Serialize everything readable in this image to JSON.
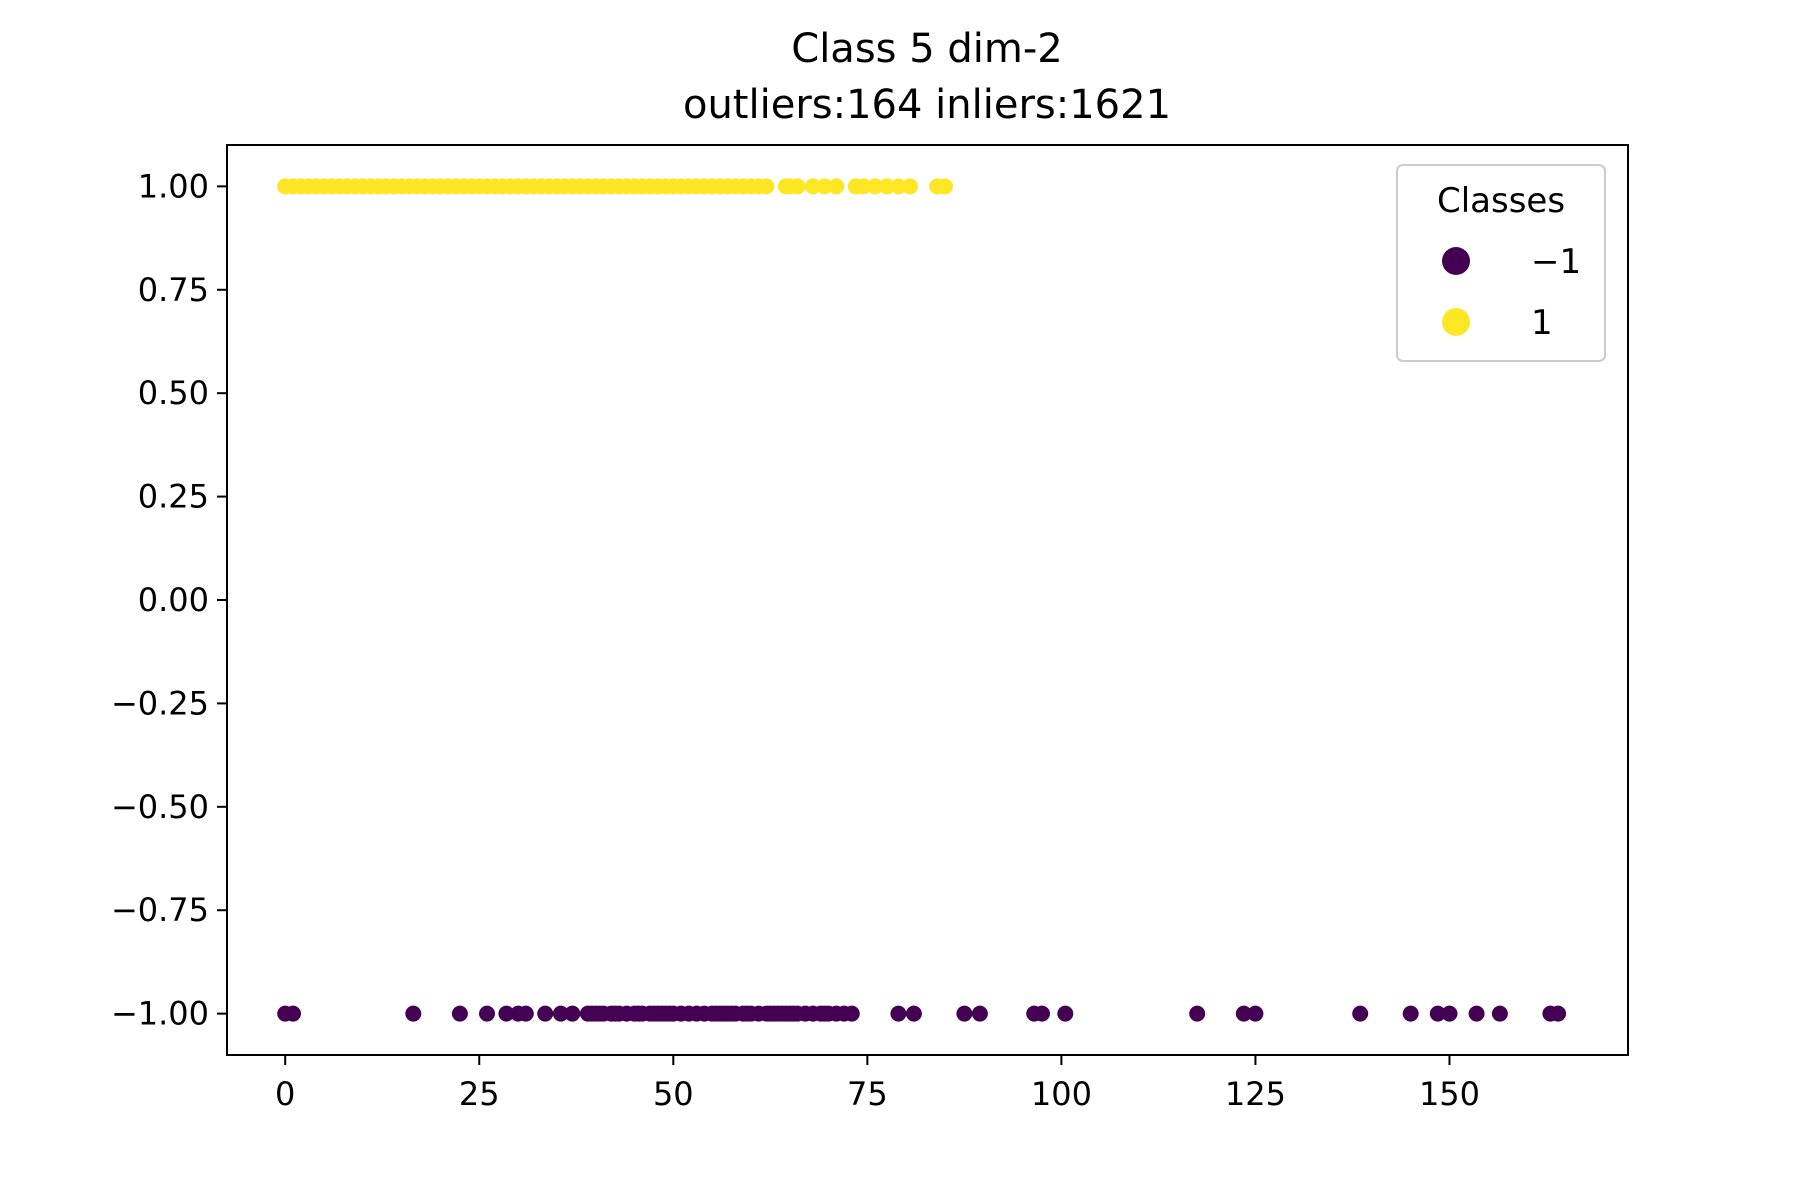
{
  "chart_data": {
    "type": "scatter",
    "title": "Class 5 dim-2",
    "subtitle": "outliers:164  inliers:1621",
    "xlabel": "",
    "ylabel": "",
    "xlim": [
      -7.5,
      173
    ],
    "ylim": [
      -1.1,
      1.1
    ],
    "x_ticks": [
      0,
      25,
      50,
      75,
      100,
      125,
      150
    ],
    "x_tick_labels": [
      "0",
      "25",
      "50",
      "75",
      "100",
      "125",
      "150"
    ],
    "y_ticks": [
      1.0,
      0.75,
      0.5,
      0.25,
      0.0,
      -0.25,
      -0.5,
      -0.75,
      -1.0
    ],
    "y_tick_labels": [
      "1.00",
      "0.75",
      "0.50",
      "0.25",
      "0.00",
      "−0.25",
      "−0.50",
      "−0.75",
      "−1.00"
    ],
    "grid": false,
    "legend": {
      "title": "Classes",
      "placement": "top-right",
      "entries": [
        {
          "label": "−1",
          "color": "#440154"
        },
        {
          "label": "1",
          "color": "#fde725"
        }
      ]
    },
    "series": [
      {
        "name": "−1",
        "color": "#440154",
        "y": -1,
        "x": [
          0,
          1,
          16.5,
          22.5,
          26,
          28.5,
          30,
          31,
          33.5,
          35.5,
          37,
          39,
          39.5,
          40,
          40.5,
          41,
          42,
          42.5,
          43,
          44,
          45,
          45.5,
          46,
          47,
          47.5,
          48,
          48.5,
          49,
          49.5,
          50,
          51,
          52,
          53,
          54,
          55,
          55.5,
          56,
          56.5,
          57,
          57.5,
          58,
          59,
          59.5,
          60,
          61,
          62,
          62.5,
          63,
          63.5,
          64,
          64.5,
          65,
          65.5,
          66,
          67,
          68,
          69,
          69.5,
          70,
          71,
          72,
          73,
          79,
          81,
          87.5,
          89.5,
          96.5,
          97.5,
          100.5,
          117.5,
          123.5,
          125,
          138.5,
          145,
          148.5,
          150,
          153.5,
          156.5,
          163,
          164
        ]
      },
      {
        "name": "1",
        "color": "#fde725",
        "y": 1,
        "x": [
          0,
          1,
          2,
          3,
          4,
          5,
          6,
          7,
          8,
          9,
          10,
          11,
          12,
          13,
          14,
          15,
          16,
          17,
          18,
          19,
          20,
          21,
          22,
          23,
          24,
          25,
          26,
          27,
          28,
          29,
          30,
          31,
          32,
          33,
          34,
          35,
          36,
          37,
          38,
          39,
          40,
          41,
          42,
          43,
          44,
          45,
          46,
          47,
          48,
          49,
          50,
          51,
          52,
          53,
          54,
          55,
          56,
          57,
          58,
          59,
          60,
          61,
          62,
          64.5,
          65,
          66,
          68,
          69.5,
          71,
          73.5,
          74.5,
          76,
          77.5,
          79,
          80.5,
          84,
          85
        ]
      }
    ]
  }
}
